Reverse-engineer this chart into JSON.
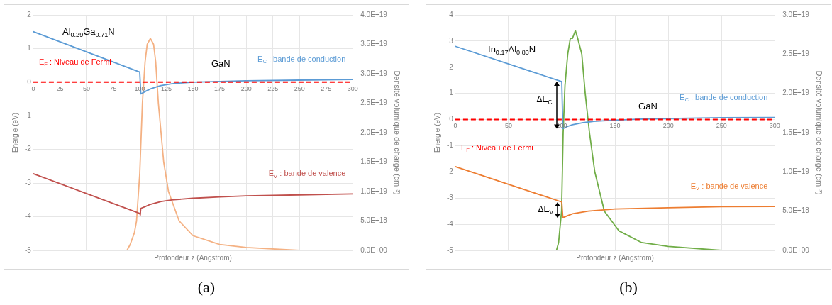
{
  "chart_data": [
    {
      "type": "line",
      "xlabel": "Profondeur z (Angström)",
      "ylabel": "Energie (eV)",
      "y2label": "Densité volumique de charge (cm⁻³)",
      "xlim": [
        0,
        300
      ],
      "xticks": [
        0,
        25,
        50,
        75,
        100,
        125,
        150,
        175,
        200,
        225,
        250,
        275,
        300
      ],
      "ylim": [
        -5,
        2
      ],
      "yticks": [
        -5,
        -4,
        -3,
        -2,
        -1,
        0,
        1,
        2
      ],
      "y2lim": [
        0,
        4e+19
      ],
      "y2ticks": [
        {
          "value": 0,
          "label": "0.0E+00"
        },
        {
          "value": 5e+18,
          "label": "5.0E+18"
        },
        {
          "value": 1e+19,
          "label": "1.0E+19"
        },
        {
          "value": 1.5e+19,
          "label": "1.5E+19"
        },
        {
          "value": 2e+19,
          "label": "2.0E+19"
        },
        {
          "value": 2.5e+19,
          "label": "2.5E+19"
        },
        {
          "value": 3e+19,
          "label": "3.0E+19"
        },
        {
          "value": 3.5e+19,
          "label": "3.5E+19"
        },
        {
          "value": 4e+19,
          "label": "4.0E+19"
        }
      ],
      "grid": true,
      "legend": false,
      "marker": "none",
      "line_style": "solid",
      "series": [
        {
          "name": "E$_{C}$ : bande de conduction",
          "color": "#5b9bd5",
          "x": [
            0,
            25,
            50,
            75,
            100,
            101,
            105,
            110,
            115,
            120,
            130,
            140,
            150,
            175,
            200,
            250,
            300
          ],
          "values": [
            1.5,
            1.2,
            0.9,
            0.6,
            0.3,
            -0.35,
            -0.28,
            -0.2,
            -0.15,
            -0.1,
            -0.05,
            -0.02,
            0,
            0.02,
            0.04,
            0.06,
            0.08
          ]
        },
        {
          "name": "E$_{V}$ : bande de valence",
          "color": "#c0504d",
          "x": [
            0,
            100,
            100.5,
            101,
            105,
            110,
            120,
            130,
            150,
            175,
            200,
            250,
            300
          ],
          "values": [
            -2.72,
            -3.9,
            -3.95,
            -3.75,
            -3.7,
            -3.63,
            -3.55,
            -3.5,
            -3.45,
            -3.41,
            -3.38,
            -3.35,
            -3.32
          ]
        },
        {
          "color": "#f4b183",
          "axis": "y2",
          "x": [
            0,
            85,
            88,
            91,
            95,
            97,
            100,
            102.5,
            105,
            107,
            110,
            113,
            115,
            117.5,
            120,
            122.5,
            127,
            137,
            150,
            175,
            200,
            250,
            300
          ],
          "values": [
            0,
            0,
            0,
            1e+18,
            3e+18,
            5e+18,
            1.3e+19,
            2.5e+19,
            3.2e+19,
            3.5e+19,
            3.6e+19,
            3.5e+19,
            3.2e+19,
            2.5e+19,
            2e+19,
            1.5e+19,
            1e+19,
            5e+18,
            2.5e+18,
            1e+18,
            5e+17,
            0,
            0
          ]
        }
      ],
      "ref_lines": [
        {
          "axis": "y",
          "value": 0,
          "label": "E$_{F}$ : Niveau de Fermi",
          "color": "#ff0000",
          "line_style": "dashed"
        }
      ],
      "annotations": [
        "Al$_{0.29}$Ga$_{0.71}$N",
        "GaN",
        "(a)"
      ]
    },
    {
      "type": "line",
      "xlabel": "Profondeur z (Angström)",
      "ylabel": "Energie (eV)",
      "y2label": "Densité volumique de charge (cm⁻³)",
      "xlim": [
        0,
        300
      ],
      "xticks": [
        0,
        50,
        100,
        150,
        200,
        250,
        300
      ],
      "ylim": [
        -5,
        4
      ],
      "yticks": [
        -5,
        -4,
        -3,
        -2,
        -1,
        0,
        1,
        2,
        3,
        4
      ],
      "y2lim": [
        0,
        3e+19
      ],
      "y2ticks": [
        {
          "value": 0,
          "label": "0.0E+00"
        },
        {
          "value": 5e+18,
          "label": "5.0E+18"
        },
        {
          "value": 1e+19,
          "label": "1.0E+19"
        },
        {
          "value": 1.5e+19,
          "label": "1.5E+19"
        },
        {
          "value": 2e+19,
          "label": "2.0E+19"
        },
        {
          "value": 2.5e+19,
          "label": "2.5E+19"
        },
        {
          "value": 3e+19,
          "label": "3.0E+19"
        }
      ],
      "grid": true,
      "legend": false,
      "marker": "none",
      "line_style": "solid",
      "series": [
        {
          "name": "E$_{C}$ : bande de conduction",
          "color": "#5b9bd5",
          "x": [
            0,
            100,
            101,
            105,
            110,
            120,
            130,
            150,
            175,
            200,
            250,
            300
          ],
          "values": [
            2.8,
            1.45,
            -0.35,
            -0.27,
            -0.2,
            -0.12,
            -0.07,
            -0.02,
            0.02,
            0.04,
            0.07,
            0.08
          ]
        },
        {
          "name": "E$_{V}$ : bande de valence",
          "color": "#ed7d31",
          "x": [
            0,
            100,
            101,
            105,
            110,
            125,
            150,
            200,
            250,
            300
          ],
          "values": [
            -1.8,
            -3.15,
            -3.75,
            -3.68,
            -3.6,
            -3.5,
            -3.42,
            -3.37,
            -3.33,
            -3.32
          ]
        },
        {
          "color": "#70ad47",
          "axis": "y2",
          "x": [
            0,
            90,
            95,
            97,
            99.8,
            101.3,
            103,
            105.6,
            108,
            110,
            112.8,
            115,
            118.8,
            122,
            126,
            131,
            140,
            153.6,
            175,
            200,
            250,
            300
          ],
          "values": [
            0,
            0,
            0,
            1e+18,
            5e+18,
            1.5e+19,
            2.1e+19,
            2.5e+19,
            2.7e+19,
            2.7e+19,
            2.8e+19,
            2.7e+19,
            2.5e+19,
            2e+19,
            1.5e+19,
            1e+19,
            5e+18,
            2.5e+18,
            1e+18,
            5e+17,
            0,
            0
          ]
        }
      ],
      "ref_lines": [
        {
          "axis": "y",
          "value": 0,
          "label": "E$_{F}$ : Niveau de Fermi",
          "color": "#ff0000",
          "line_style": "dashed"
        }
      ],
      "annotations": [
        "In$_{0.17}$Al$_{0.83}$N",
        "GaN",
        "ΔE$_{C}$",
        "ΔE$_{V}$",
        "(b)"
      ]
    }
  ]
}
